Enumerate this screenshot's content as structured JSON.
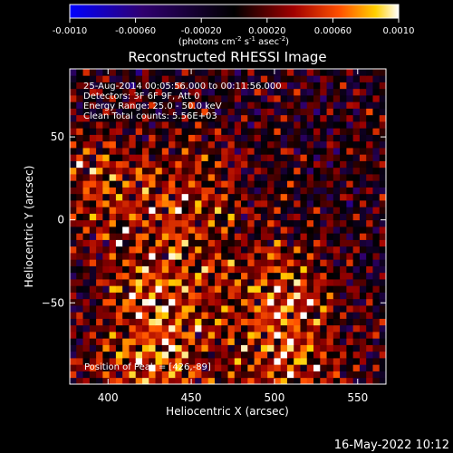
{
  "colorbar": {
    "ticks": [
      "-0.0010",
      "-0.00060",
      "-0.00020",
      "0.00020",
      "0.00060",
      "0.0010"
    ],
    "tick_values": [
      -0.001,
      -0.0006,
      -0.0002,
      0.0002,
      0.0006,
      0.001
    ],
    "range": [
      -0.001,
      0.001
    ],
    "units": "(photons cm",
    "units_exp1": "-2",
    "units_mid": " s",
    "units_exp2": "-1",
    "units_end": " asec",
    "units_exp3": "-2",
    "units_close": ")"
  },
  "colors": {
    "cmap": [
      "#0000ff",
      "#200060",
      "#000000",
      "#800000",
      "#ff4000",
      "#ffd000",
      "#ffffff"
    ],
    "background": "#000000",
    "text": "#ffffff"
  },
  "chart_data": {
    "type": "heatmap",
    "title": "Reconstructed RHESSI Image",
    "xlabel": "Heliocentric X (arcsec)",
    "ylabel": "Heliocentric Y (arcsec)",
    "xlim": [
      377,
      567
    ],
    "ylim": [
      -99,
      91
    ],
    "x_ticks": [
      "400",
      "450",
      "500",
      "550"
    ],
    "x_tick_values": [
      400,
      450,
      500,
      550
    ],
    "y_ticks": [
      "50",
      "0",
      "−50"
    ],
    "y_tick_values": [
      50,
      0,
      -50
    ],
    "annotations": [
      "25-Aug-2014 00:05:56.000 to 00:11:56.000",
      "Detectors: 3F 6F 9F, Att 0",
      "Energy Range: 25.0 - 50.0 keV",
      "Clean    Total counts: 5.56E+03"
    ],
    "peak_label": "Position of Peak = [426,-89]",
    "peak": [
      426,
      -89
    ],
    "sources": [
      {
        "x": 432,
        "y": -40,
        "amplitude": 0.00095
      },
      {
        "x": 503,
        "y": -45,
        "amplitude": 0.0009
      },
      {
        "x": 395,
        "y": 20,
        "amplitude": 0.0007
      },
      {
        "x": 450,
        "y": 15,
        "amplitude": 0.0007
      },
      {
        "x": 426,
        "y": -89,
        "amplitude": 0.001
      },
      {
        "x": 510,
        "y": -90,
        "amplitude": 0.0008
      }
    ]
  },
  "footer": {
    "date": "16-May-2022 10:12"
  }
}
